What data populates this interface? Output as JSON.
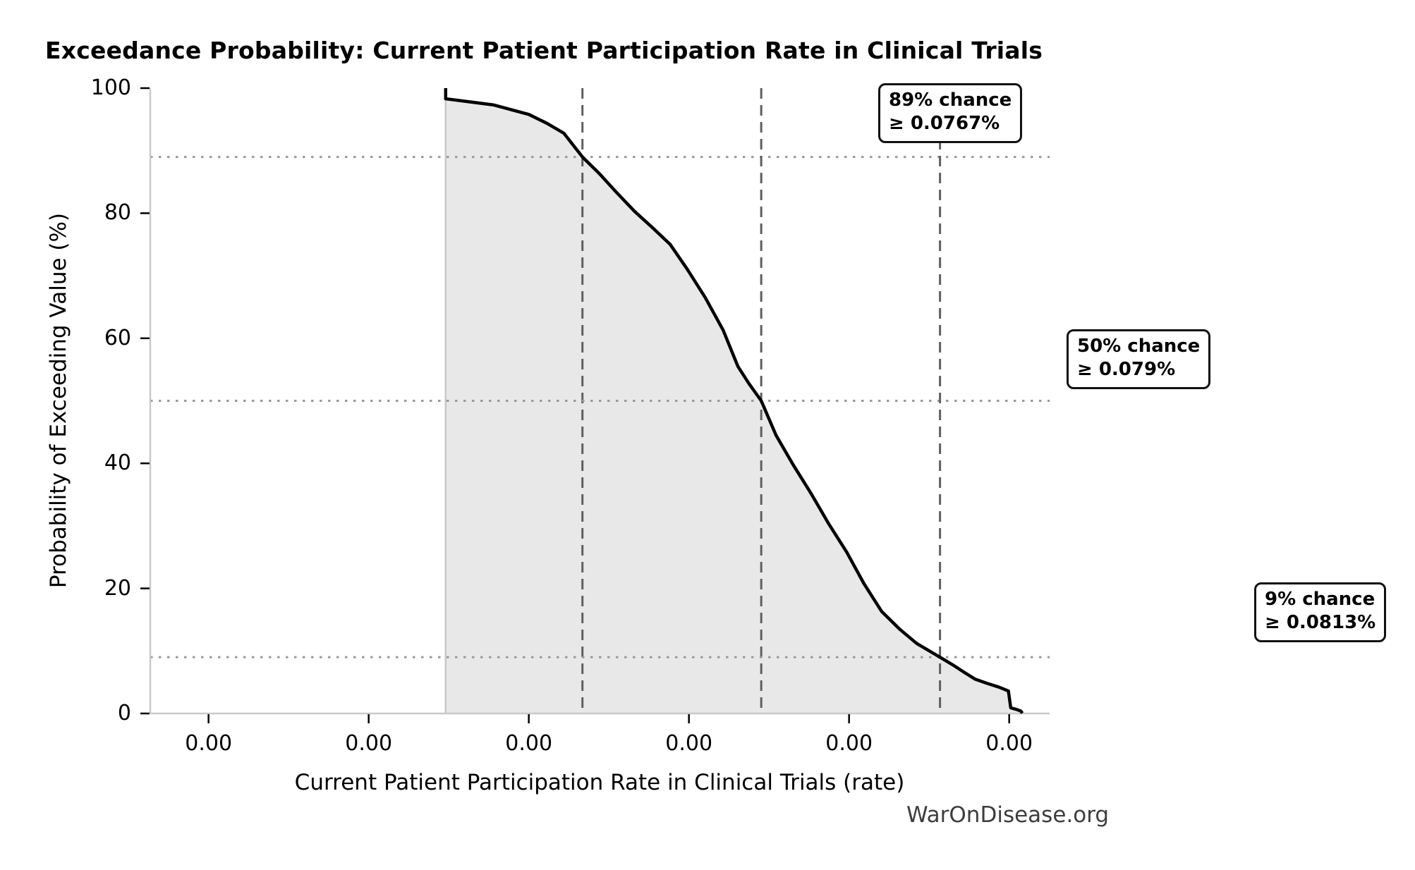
{
  "page": {
    "title": "Exceedance Probability: Current Patient Participation Rate in Clinical Trials",
    "watermark": "WarOnDisease.org"
  },
  "chart_data": {
    "type": "area",
    "subtype": "exceedance-probability-curve",
    "title": "Exceedance Probability: Current Patient Participation Rate in Clinical Trials",
    "xlabel": "Current Patient Participation Rate in Clinical Trials (rate)",
    "ylabel": "Probability of Exceeding Value (%)",
    "xlim": [
      0.07114,
      0.08271
    ],
    "ylim": [
      0,
      100
    ],
    "grid": false,
    "legend": "none",
    "x_tick_labels": [
      "0.00",
      "0.00",
      "0.00",
      "0.00",
      "0.00",
      "0.00"
    ],
    "x_tick_positions": [
      0.07189,
      0.07395,
      0.07601,
      0.07807,
      0.08013,
      0.08219
    ],
    "y_ticks": [
      0,
      20,
      40,
      60,
      80,
      100
    ],
    "annotations": [
      {
        "line1": "89% chance",
        "line2": "≥ 0.0767%",
        "chance_pct": 89,
        "threshold_rate": 0.0767
      },
      {
        "line1": "50% chance",
        "line2": "≥ 0.079%",
        "chance_pct": 50,
        "threshold_rate": 0.079
      },
      {
        "line1": "9% chance",
        "line2": "≥ 0.0813%",
        "chance_pct": 9,
        "threshold_rate": 0.0813
      }
    ],
    "series": [
      {
        "name": "exceedance-curve",
        "points": [
          [
            0.07494,
            100.0
          ],
          [
            0.07494,
            98.3
          ],
          [
            0.07519,
            97.9
          ],
          [
            0.07556,
            97.3
          ],
          [
            0.07601,
            95.8
          ],
          [
            0.07624,
            94.4
          ],
          [
            0.07646,
            92.8
          ],
          [
            0.0767,
            89.0
          ],
          [
            0.07692,
            86.3
          ],
          [
            0.07714,
            83.3
          ],
          [
            0.07737,
            80.3
          ],
          [
            0.0776,
            77.7
          ],
          [
            0.07783,
            75.0
          ],
          [
            0.07805,
            71.0
          ],
          [
            0.07828,
            66.5
          ],
          [
            0.07851,
            61.3
          ],
          [
            0.0787,
            55.5
          ],
          [
            0.07884,
            52.8
          ],
          [
            0.079,
            50.0
          ],
          [
            0.07919,
            44.5
          ],
          [
            0.07941,
            39.8
          ],
          [
            0.07964,
            35.2
          ],
          [
            0.07987,
            30.3
          ],
          [
            0.0801,
            25.8
          ],
          [
            0.08032,
            20.8
          ],
          [
            0.08055,
            16.3
          ],
          [
            0.08078,
            13.5
          ],
          [
            0.081,
            11.2
          ],
          [
            0.0813,
            9.0
          ],
          [
            0.08146,
            7.8
          ],
          [
            0.08162,
            6.5
          ],
          [
            0.08175,
            5.5
          ],
          [
            0.08191,
            4.8
          ],
          [
            0.08206,
            4.2
          ],
          [
            0.08218,
            3.6
          ],
          [
            0.08221,
            0.9
          ],
          [
            0.08227,
            0.7
          ],
          [
            0.08234,
            0.4
          ],
          [
            0.08236,
            0.05
          ]
        ]
      }
    ],
    "colors": {
      "curve": "#000000",
      "fill": "#e8e8e8",
      "fill_edge": "#c8c8c8",
      "dashed_guide": "#5f5f5f",
      "dotted_guide": "#9a9a9a",
      "spine": "#c9c9c9",
      "tick_mark": "#000000",
      "annotation_border": "#111111",
      "watermark": "#3d3d3d"
    }
  }
}
